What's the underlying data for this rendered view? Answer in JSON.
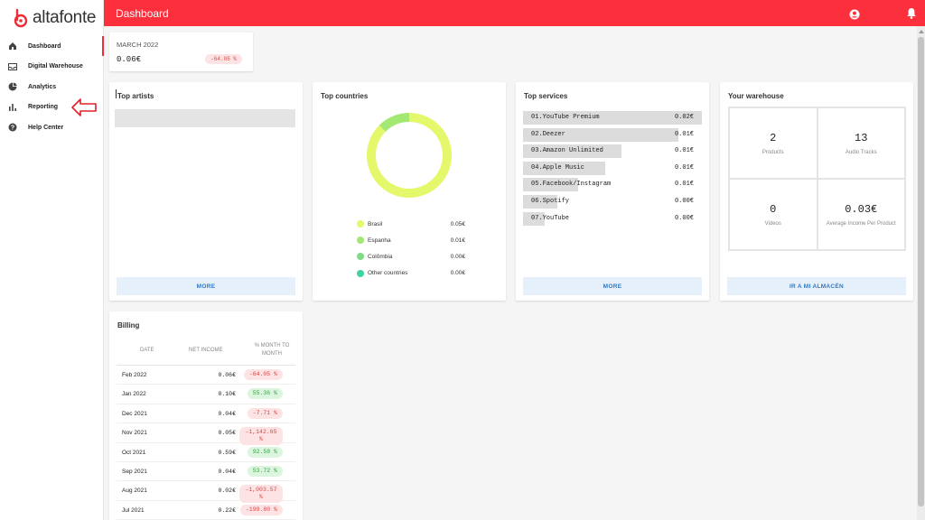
{
  "brand": {
    "name": "altafonte",
    "color": "#ef2d36"
  },
  "header": {
    "title": "Dashboard",
    "user_icon": "user-circle-icon",
    "notification_icon": "bell-icon"
  },
  "sidebar": {
    "items": [
      {
        "label": "Dashboard",
        "icon": "home-icon",
        "active": true
      },
      {
        "label": "Digital Warehouse",
        "icon": "inbox-icon"
      },
      {
        "label": "Analytics",
        "icon": "pie-chart-icon"
      },
      {
        "label": "Reporting",
        "icon": "bar-chart-icon"
      },
      {
        "label": "Help Center",
        "icon": "help-icon"
      }
    ]
  },
  "month_summary": {
    "label": "MARCH 2022",
    "value": "0.06€",
    "change": "-64.05 %"
  },
  "top_artists": {
    "title": "Top artists",
    "more_label": "MORE"
  },
  "top_countries": {
    "title": "Top countries",
    "chart_data": {
      "type": "pie",
      "categories": [
        "Brasil",
        "Espanha",
        "Colômbia",
        "Other countries"
      ],
      "values": [
        0.05,
        0.01,
        0.0,
        0.0
      ],
      "display_values": [
        "0.05€",
        "0.01€",
        "0.00€",
        "0.00€"
      ],
      "colors": [
        "#e5f76a",
        "#a2e872",
        "#7fdc84",
        "#3fd3a3"
      ],
      "slice_fractions": [
        0.875,
        0.125,
        0,
        0
      ]
    }
  },
  "top_services": {
    "title": "Top services",
    "more_label": "MORE",
    "items": [
      {
        "name": "01.YouTube Premium",
        "value": "0.02€",
        "share": 1.0
      },
      {
        "name": "02.Deezer",
        "value": "0.01€",
        "share": 0.87
      },
      {
        "name": "03.Amazon Unlimited",
        "value": "0.01€",
        "share": 0.55
      },
      {
        "name": "04.Apple Music",
        "value": "0.01€",
        "share": 0.46
      },
      {
        "name": "05.Facebook/Instagram",
        "value": "0.01€",
        "share": 0.31
      },
      {
        "name": "06.Spotify",
        "value": "0.00€",
        "share": 0.19
      },
      {
        "name": "07.YouTube",
        "value": "0.00€",
        "share": 0.12
      }
    ]
  },
  "warehouse": {
    "title": "Your warehouse",
    "button_label": "IR A MI ALMACÉN",
    "stats": [
      {
        "value": "2",
        "label": "Products"
      },
      {
        "value": "13",
        "label": "Audio Tracks"
      },
      {
        "value": "0",
        "label": "Videos"
      },
      {
        "value": "0.03€",
        "label": "Average Income Per Product"
      }
    ]
  },
  "billing": {
    "title": "Billing",
    "columns": [
      "DATE",
      "NET INCOME",
      "% MONTH TO MONTH"
    ],
    "rows": [
      {
        "date": "Feb 2022",
        "income": "0.06€",
        "change": "-64.05 %",
        "trend": "neg"
      },
      {
        "date": "Jan 2022",
        "income": "0.10€",
        "change": "55.36 %",
        "trend": "pos"
      },
      {
        "date": "Dec 2021",
        "income": "0.04€",
        "change": "-7.71 %",
        "trend": "neg"
      },
      {
        "date": "Nov 2021",
        "income": "0.05€",
        "change": "-1,142.65 %",
        "trend": "neg"
      },
      {
        "date": "Oct 2021",
        "income": "0.59€",
        "change": "92.58 %",
        "trend": "pos"
      },
      {
        "date": "Sep 2021",
        "income": "0.04€",
        "change": "53.72 %",
        "trend": "pos"
      },
      {
        "date": "Aug 2021",
        "income": "0.02€",
        "change": "-1,003.57 %",
        "trend": "neg"
      },
      {
        "date": "Jul 2021",
        "income": "0.22€",
        "change": "-199.80 %",
        "trend": "neg"
      }
    ]
  }
}
